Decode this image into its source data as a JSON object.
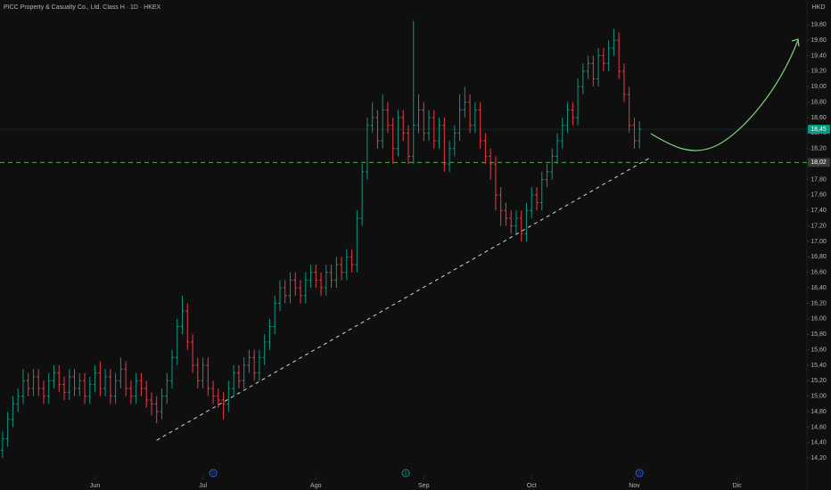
{
  "chart_data": {
    "type": "ohlc",
    "title": "PICC Property & Casualty Co., Ltd. Class H · 1D · HKEX",
    "currency": "HKD",
    "series": [
      {
        "up_color": "#089981",
        "down_color": "#f23645",
        "ohlc": [
          [
            14.3,
            14.55,
            14.2,
            14.45
          ],
          [
            14.45,
            14.8,
            14.35,
            14.7
          ],
          [
            14.7,
            15.0,
            14.6,
            14.9
          ],
          [
            14.9,
            15.1,
            14.8,
            15.0
          ],
          [
            15.0,
            15.35,
            14.9,
            15.2
          ],
          [
            15.2,
            15.3,
            15.0,
            15.1
          ],
          [
            15.1,
            15.35,
            15.0,
            15.25
          ],
          [
            15.25,
            15.35,
            15.0,
            15.1
          ],
          [
            15.1,
            15.2,
            14.9,
            15.0
          ],
          [
            15.0,
            15.3,
            14.9,
            15.2
          ],
          [
            15.2,
            15.4,
            15.1,
            15.3
          ],
          [
            15.3,
            15.4,
            15.05,
            15.15
          ],
          [
            15.15,
            15.25,
            14.95,
            15.05
          ],
          [
            15.05,
            15.35,
            14.95,
            15.25
          ],
          [
            15.25,
            15.35,
            15.0,
            15.1
          ],
          [
            15.1,
            15.3,
            15.0,
            15.2
          ],
          [
            15.2,
            15.3,
            14.9,
            15.0
          ],
          [
            15.0,
            15.25,
            14.9,
            15.15
          ],
          [
            15.15,
            15.4,
            15.05,
            15.3
          ],
          [
            15.3,
            15.45,
            15.0,
            15.1
          ],
          [
            15.1,
            15.35,
            15.0,
            15.25
          ],
          [
            15.25,
            15.35,
            14.9,
            15.0
          ],
          [
            15.0,
            15.3,
            14.9,
            15.2
          ],
          [
            15.2,
            15.5,
            15.1,
            15.35
          ],
          [
            15.35,
            15.45,
            15.0,
            15.1
          ],
          [
            15.1,
            15.2,
            14.9,
            15.0
          ],
          [
            15.0,
            15.3,
            14.9,
            15.2
          ],
          [
            15.2,
            15.3,
            15.0,
            15.1
          ],
          [
            15.1,
            15.2,
            14.85,
            14.95
          ],
          [
            14.95,
            15.05,
            14.75,
            14.9
          ],
          [
            14.9,
            15.0,
            14.65,
            14.8
          ],
          [
            14.8,
            15.1,
            14.7,
            15.0
          ],
          [
            15.0,
            15.3,
            14.9,
            15.2
          ],
          [
            15.2,
            15.6,
            15.1,
            15.5
          ],
          [
            15.5,
            16.0,
            15.4,
            15.9
          ],
          [
            15.9,
            16.3,
            15.8,
            16.1
          ],
          [
            16.1,
            16.2,
            15.6,
            15.7
          ],
          [
            15.7,
            15.8,
            15.3,
            15.4
          ],
          [
            15.4,
            15.5,
            15.1,
            15.2
          ],
          [
            15.2,
            15.5,
            15.1,
            15.4
          ],
          [
            15.4,
            15.5,
            15.0,
            15.1
          ],
          [
            15.1,
            15.2,
            14.9,
            15.0
          ],
          [
            15.0,
            15.1,
            14.85,
            14.95
          ],
          [
            14.95,
            15.05,
            14.7,
            14.9
          ],
          [
            14.9,
            15.2,
            14.8,
            15.1
          ],
          [
            15.1,
            15.4,
            15.0,
            15.3
          ],
          [
            15.3,
            15.4,
            15.1,
            15.2
          ],
          [
            15.2,
            15.5,
            15.1,
            15.4
          ],
          [
            15.4,
            15.6,
            15.3,
            15.5
          ],
          [
            15.5,
            15.6,
            15.2,
            15.3
          ],
          [
            15.3,
            15.6,
            15.2,
            15.5
          ],
          [
            15.5,
            15.8,
            15.4,
            15.7
          ],
          [
            15.7,
            16.0,
            15.6,
            15.9
          ],
          [
            15.9,
            16.3,
            15.8,
            16.2
          ],
          [
            16.2,
            16.5,
            16.1,
            16.4
          ],
          [
            16.4,
            16.5,
            16.2,
            16.3
          ],
          [
            16.3,
            16.6,
            16.2,
            16.5
          ],
          [
            16.5,
            16.6,
            16.3,
            16.4
          ],
          [
            16.4,
            16.5,
            16.2,
            16.3
          ],
          [
            16.3,
            16.6,
            16.2,
            16.5
          ],
          [
            16.5,
            16.7,
            16.4,
            16.6
          ],
          [
            16.6,
            16.7,
            16.4,
            16.5
          ],
          [
            16.5,
            16.6,
            16.3,
            16.4
          ],
          [
            16.4,
            16.7,
            16.3,
            16.6
          ],
          [
            16.6,
            16.7,
            16.4,
            16.5
          ],
          [
            16.5,
            16.8,
            16.4,
            16.7
          ],
          [
            16.7,
            16.8,
            16.5,
            16.6
          ],
          [
            16.6,
            16.9,
            16.5,
            16.8
          ],
          [
            16.8,
            16.9,
            16.6,
            16.7
          ],
          [
            16.7,
            17.4,
            16.6,
            17.3
          ],
          [
            17.3,
            18.0,
            17.2,
            17.9
          ],
          [
            17.9,
            18.6,
            17.8,
            18.5
          ],
          [
            18.5,
            18.8,
            18.4,
            18.6
          ],
          [
            18.6,
            18.7,
            18.2,
            18.3
          ],
          [
            18.3,
            18.9,
            18.2,
            18.7
          ],
          [
            18.7,
            18.8,
            18.4,
            18.5
          ],
          [
            18.5,
            18.6,
            18.0,
            18.2
          ],
          [
            18.2,
            18.7,
            18.1,
            18.6
          ],
          [
            18.6,
            18.7,
            18.3,
            18.4
          ],
          [
            18.4,
            18.5,
            18.0,
            18.1
          ],
          [
            18.1,
            19.85,
            18.0,
            18.5
          ],
          [
            18.5,
            18.9,
            18.4,
            18.7
          ],
          [
            18.7,
            18.8,
            18.3,
            18.4
          ],
          [
            18.4,
            18.7,
            18.3,
            18.6
          ],
          [
            18.6,
            18.7,
            18.2,
            18.3
          ],
          [
            18.3,
            18.6,
            18.2,
            18.5
          ],
          [
            18.5,
            18.6,
            17.9,
            18.0
          ],
          [
            18.0,
            18.3,
            17.9,
            18.2
          ],
          [
            18.2,
            18.5,
            18.1,
            18.4
          ],
          [
            18.4,
            18.9,
            18.3,
            18.7
          ],
          [
            18.7,
            19.0,
            18.6,
            18.8
          ],
          [
            18.8,
            18.9,
            18.4,
            18.5
          ],
          [
            18.5,
            18.8,
            18.4,
            18.7
          ],
          [
            18.7,
            18.8,
            18.2,
            18.3
          ],
          [
            18.3,
            18.4,
            18.0,
            18.1
          ],
          [
            18.1,
            18.2,
            17.8,
            18.0
          ],
          [
            18.0,
            18.1,
            17.4,
            17.6
          ],
          [
            17.6,
            17.7,
            17.2,
            17.4
          ],
          [
            17.4,
            17.5,
            17.2,
            17.3
          ],
          [
            17.3,
            17.4,
            17.1,
            17.2
          ],
          [
            17.2,
            17.4,
            17.1,
            17.3
          ],
          [
            17.3,
            17.4,
            17.0,
            17.1
          ],
          [
            17.1,
            17.5,
            17.0,
            17.4
          ],
          [
            17.4,
            17.7,
            17.3,
            17.6
          ],
          [
            17.6,
            17.7,
            17.4,
            17.5
          ],
          [
            17.5,
            17.9,
            17.4,
            17.8
          ],
          [
            17.8,
            18.0,
            17.7,
            17.9
          ],
          [
            17.9,
            18.2,
            17.8,
            18.1
          ],
          [
            18.1,
            18.4,
            18.0,
            18.3
          ],
          [
            18.3,
            18.6,
            18.2,
            18.5
          ],
          [
            18.5,
            18.8,
            18.4,
            18.7
          ],
          [
            18.7,
            18.8,
            18.5,
            18.6
          ],
          [
            18.6,
            19.1,
            18.5,
            19.0
          ],
          [
            19.0,
            19.3,
            18.9,
            19.2
          ],
          [
            19.2,
            19.4,
            19.1,
            19.3
          ],
          [
            19.3,
            19.4,
            19.0,
            19.1
          ],
          [
            19.1,
            19.5,
            19.0,
            19.4
          ],
          [
            19.4,
            19.5,
            19.2,
            19.3
          ],
          [
            19.3,
            19.6,
            19.2,
            19.5
          ],
          [
            19.5,
            19.75,
            19.4,
            19.6
          ],
          [
            19.6,
            19.7,
            19.1,
            19.2
          ],
          [
            19.2,
            19.3,
            18.8,
            18.9
          ],
          [
            18.9,
            19.0,
            18.4,
            18.5
          ],
          [
            18.5,
            18.6,
            18.2,
            18.3
          ],
          [
            18.3,
            18.55,
            18.2,
            18.45
          ]
        ]
      }
    ],
    "xlim": [
      -0.5,
      156.6
    ],
    "xticks": [
      {
        "value": 18,
        "label": "Jun"
      },
      {
        "value": 39,
        "label": "Jul"
      },
      {
        "value": 61,
        "label": "Ago"
      },
      {
        "value": 82,
        "label": "Sep"
      },
      {
        "value": 103,
        "label": "Oct"
      },
      {
        "value": 123,
        "label": "Nov"
      },
      {
        "value": 143,
        "label": "Dic"
      }
    ],
    "ylim": [
      13.96,
      20.12
    ],
    "yticks": [
      {
        "value": 14.2,
        "label": "14,20"
      },
      {
        "value": 14.4,
        "label": "14,40"
      },
      {
        "value": 14.6,
        "label": "14,60"
      },
      {
        "value": 14.8,
        "label": "14,80"
      },
      {
        "value": 15.0,
        "label": "15,00"
      },
      {
        "value": 15.2,
        "label": "15,20"
      },
      {
        "value": 15.4,
        "label": "15,40"
      },
      {
        "value": 15.6,
        "label": "15,60"
      },
      {
        "value": 15.8,
        "label": "15,80"
      },
      {
        "value": 16.0,
        "label": "16,00"
      },
      {
        "value": 16.2,
        "label": "16,20"
      },
      {
        "value": 16.4,
        "label": "16,40"
      },
      {
        "value": 16.6,
        "label": "16,60"
      },
      {
        "value": 16.8,
        "label": "16,80"
      },
      {
        "value": 17.0,
        "label": "17,00"
      },
      {
        "value": 17.2,
        "label": "17,20"
      },
      {
        "value": 17.4,
        "label": "17,40"
      },
      {
        "value": 17.6,
        "label": "17,60"
      },
      {
        "value": 17.8,
        "label": "17,80"
      },
      {
        "value": 18.0,
        "label": "18,00"
      },
      {
        "value": 18.2,
        "label": "18,20"
      },
      {
        "value": 18.4,
        "label": "18,40"
      },
      {
        "value": 18.6,
        "label": "18,60"
      },
      {
        "value": 18.8,
        "label": "18,80"
      },
      {
        "value": 19.0,
        "label": "19,00"
      },
      {
        "value": 19.2,
        "label": "19,20"
      },
      {
        "value": 19.4,
        "label": "19,40"
      },
      {
        "value": 19.6,
        "label": "19,60"
      },
      {
        "value": 19.8,
        "label": "19,80"
      }
    ],
    "last_price": {
      "value": 18.45,
      "label": "18,45",
      "color": "#089981"
    },
    "level": {
      "value": 18.02,
      "label": "18,02",
      "color": "#4caf50"
    },
    "trendline": {
      "x": [
        30,
        126
      ],
      "y": [
        14.43,
        18.08
      ],
      "color": "#b9e6c9"
    },
    "events": [
      {
        "x": 41,
        "label": "D",
        "color": "#2962ff"
      },
      {
        "x": 78.5,
        "label": "S",
        "color": "#089981"
      },
      {
        "x": 124,
        "label": "D",
        "color": "#2962ff"
      }
    ]
  }
}
